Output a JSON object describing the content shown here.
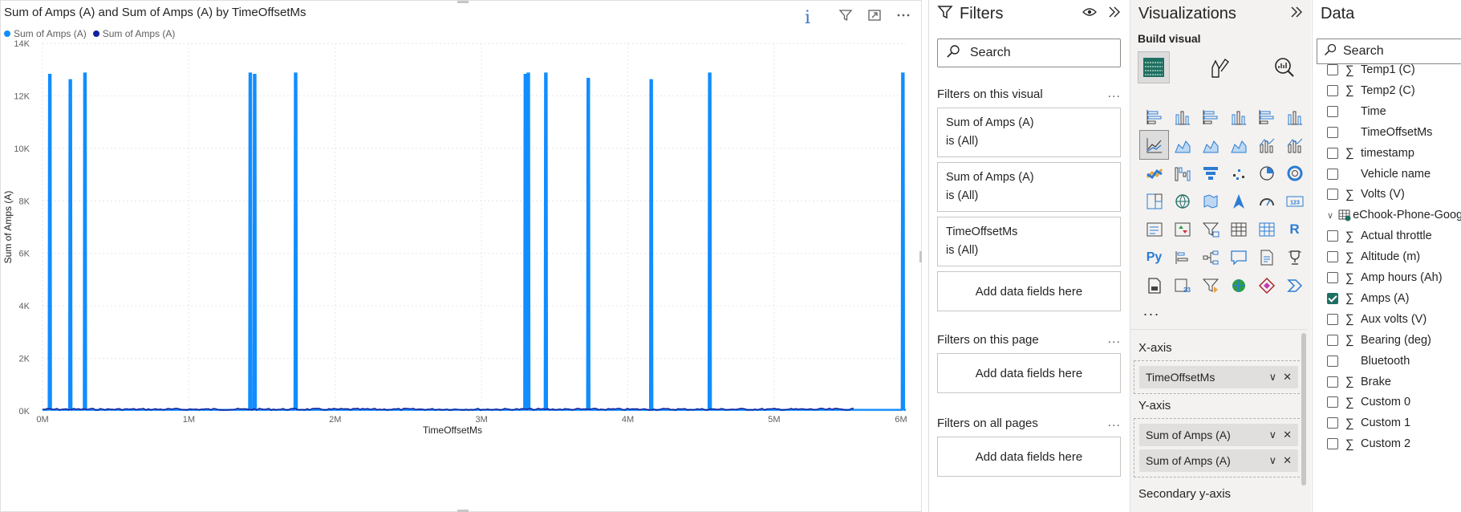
{
  "visual": {
    "title": "Sum of Amps (A) and Sum of Amps (A) by TimeOffsetMs",
    "legend": [
      {
        "label": "Sum of Amps (A)",
        "color": "#118dff"
      },
      {
        "label": "Sum of Amps (A)",
        "color": "#12239e"
      }
    ],
    "info_glyph": "i",
    "header_icons": [
      "filter-icon",
      "focus-mode-icon",
      "more-options-icon"
    ]
  },
  "chart_data": {
    "type": "line",
    "xlabel": "TimeOffsetMs",
    "ylabel": "Sum of Amps (A)",
    "xlim": [
      0,
      5900000
    ],
    "ylim": [
      0,
      14000
    ],
    "x_ticks": [
      "0M",
      "1M",
      "2M",
      "3M",
      "4M",
      "5M",
      "6M"
    ],
    "x_tick_values": [
      0,
      1000000,
      2000000,
      3000000,
      4000000,
      5000000,
      6000000
    ],
    "y_ticks": [
      "0K",
      "2K",
      "4K",
      "6K",
      "8K",
      "10K",
      "12K",
      "14K"
    ],
    "y_tick_values": [
      0,
      2000,
      4000,
      6000,
      8000,
      10000,
      12000,
      14000
    ],
    "grid": true,
    "legend_position": "top-left",
    "series": [
      {
        "name": "Sum of Amps (A)",
        "color": "#118dff",
        "spikes": [
          {
            "x": 50000,
            "y": 12800
          },
          {
            "x": 190000,
            "y": 12600
          },
          {
            "x": 290000,
            "y": 12850
          },
          {
            "x": 1420000,
            "y": 12850
          },
          {
            "x": 1450000,
            "y": 12800
          },
          {
            "x": 1730000,
            "y": 12850
          },
          {
            "x": 3300000,
            "y": 12800
          },
          {
            "x": 3320000,
            "y": 12850
          },
          {
            "x": 3440000,
            "y": 12850
          },
          {
            "x": 3730000,
            "y": 12650
          },
          {
            "x": 4160000,
            "y": 12600
          },
          {
            "x": 4560000,
            "y": 12850
          },
          {
            "x": 5880000,
            "y": 12850
          }
        ],
        "baseline": 40
      },
      {
        "name": "Sum of Amps (A)",
        "color": "#12239e",
        "baseline": 60,
        "x_end": 5550000
      }
    ]
  },
  "filters": {
    "title": "Filters",
    "search_placeholder": "Search",
    "on_visual": {
      "heading": "Filters on this visual",
      "cards": [
        {
          "field": "Sum of Amps (A)",
          "state": "is (All)"
        },
        {
          "field": "Sum of Amps (A)",
          "state": "is (All)"
        },
        {
          "field": "TimeOffsetMs",
          "state": "is (All)"
        }
      ],
      "add_label": "Add data fields here"
    },
    "on_page": {
      "heading": "Filters on this page",
      "add_label": "Add data fields here"
    },
    "on_all_pages": {
      "heading": "Filters on all pages",
      "add_label": "Add data fields here"
    },
    "dots": "..."
  },
  "visualizations": {
    "title": "Visualizations",
    "build_label": "Build visual",
    "more": "...",
    "x_axis": {
      "label": "X-axis",
      "fields": [
        "TimeOffsetMs"
      ]
    },
    "y_axis": {
      "label": "Y-axis",
      "fields": [
        "Sum of Amps (A)",
        "Sum of Amps (A)"
      ]
    },
    "secondary_y_axis": {
      "label": "Secondary y-axis"
    },
    "grid_icons": [
      "stacked-bar-icon",
      "stacked-column-icon",
      "clustered-bar-icon",
      "clustered-column-icon",
      "100-stacked-bar-icon",
      "100-stacked-column-icon",
      "line-chart-icon",
      "area-chart-icon",
      "stacked-area-icon",
      "100-stacked-area-icon",
      "line-clustered-column-icon",
      "line-stacked-column-icon",
      "ribbon-chart-icon",
      "waterfall-icon",
      "funnel-icon",
      "scatter-icon",
      "pie-chart-icon",
      "donut-chart-icon",
      "treemap-icon",
      "map-icon",
      "filled-map-icon",
      "azure-map-icon",
      "gauge-icon",
      "card-icon",
      "multi-row-card-icon",
      "kpi-icon",
      "slicer-icon",
      "table-icon",
      "matrix-icon",
      "r-visual-icon",
      "python-visual-icon",
      "key-influencers-icon",
      "decomposition-tree-icon",
      "qa-icon",
      "smart-narrative-icon",
      "metrics-icon",
      "paginated-report-icon",
      "power-apps-icon",
      "power-automate-icon",
      "arcgis-icon",
      "power-apps-diamond-icon",
      "power-automate-arrow-icon"
    ],
    "text_glyphs": {
      "r": "R",
      "py": "Py",
      "card": "123"
    }
  },
  "data_pane": {
    "title": "Data",
    "search_placeholder": "Search",
    "fields": [
      {
        "label": "Temp1 (C)",
        "sigma": true,
        "checked": false
      },
      {
        "label": "Temp2 (C)",
        "sigma": true,
        "checked": false
      },
      {
        "label": "Time",
        "sigma": false,
        "checked": false
      },
      {
        "label": "TimeOffsetMs",
        "sigma": false,
        "checked": false
      },
      {
        "label": "timestamp",
        "sigma": true,
        "checked": false
      },
      {
        "label": "Vehicle name",
        "sigma": false,
        "checked": false
      },
      {
        "label": "Volts (V)",
        "sigma": true,
        "checked": false
      },
      {
        "label": "eChook-Phone-Google",
        "table": true
      },
      {
        "label": "Actual throttle",
        "sigma": true,
        "checked": false
      },
      {
        "label": "Altitude (m)",
        "sigma": true,
        "checked": false
      },
      {
        "label": "Amp hours (Ah)",
        "sigma": true,
        "checked": false
      },
      {
        "label": "Amps (A)",
        "sigma": true,
        "checked": true
      },
      {
        "label": "Aux volts (V)",
        "sigma": true,
        "checked": false
      },
      {
        "label": "Bearing (deg)",
        "sigma": true,
        "checked": false
      },
      {
        "label": "Bluetooth",
        "sigma": false,
        "checked": false
      },
      {
        "label": "Brake",
        "sigma": true,
        "checked": false
      },
      {
        "label": "Custom 0",
        "sigma": true,
        "checked": false
      },
      {
        "label": "Custom 1",
        "sigma": true,
        "checked": false
      },
      {
        "label": "Custom 2",
        "sigma": true,
        "checked": false
      }
    ]
  }
}
